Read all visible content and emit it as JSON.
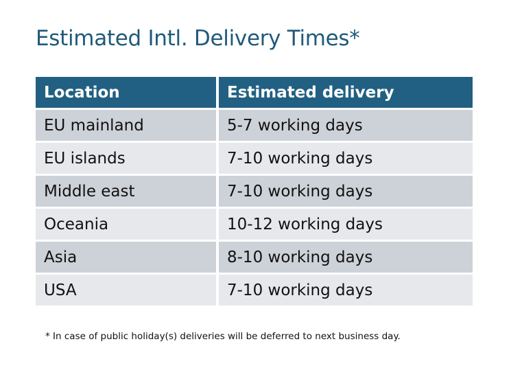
{
  "title": "Estimated Intl. Delivery Times*",
  "table": {
    "headers": [
      "Location",
      "Estimated delivery"
    ],
    "rows": [
      [
        "EU mainland",
        "5-7 working days"
      ],
      [
        "EU islands",
        "7-10 working days"
      ],
      [
        "Middle east",
        "7-10 working days"
      ],
      [
        "Oceania",
        "10-12 working days"
      ],
      [
        "Asia",
        "8-10 working days"
      ],
      [
        "USA",
        "7-10 working days"
      ]
    ]
  },
  "footnote": "* In case of public holiday(s) deliveries will be deferred to next business day.",
  "colors": {
    "header": "#216082",
    "title": "#1f5a7a",
    "row_dark": "#cdd1d8",
    "row_light": "#e6e8eb"
  }
}
